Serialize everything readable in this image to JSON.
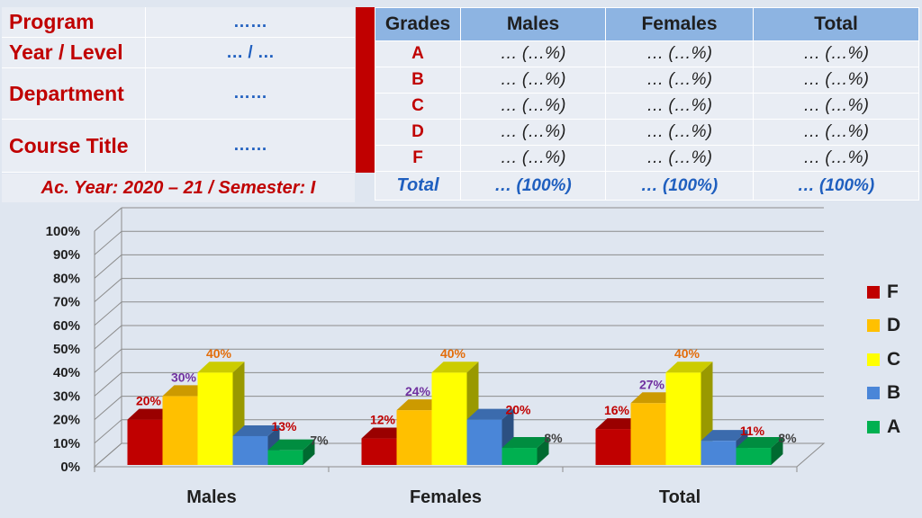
{
  "info": {
    "rows": [
      {
        "label": "Program",
        "value": "……"
      },
      {
        "label": "Year / Level",
        "value": "… / …"
      },
      {
        "label": "Department",
        "value": "……"
      },
      {
        "label": "Course Title",
        "value": "……"
      }
    ],
    "ac_year": "Ac. Year: 2020 – 21 / Semester: I"
  },
  "grades_table": {
    "headers": [
      "Grades",
      "Males",
      "Females",
      "Total"
    ],
    "rows": [
      [
        "A",
        "… (…%)",
        "… (…%)",
        "… (…%)"
      ],
      [
        "B",
        "… (…%)",
        "… (…%)",
        "… (…%)"
      ],
      [
        "C",
        "… (…%)",
        "… (…%)",
        "… (…%)"
      ],
      [
        "D",
        "… (…%)",
        "… (…%)",
        "… (…%)"
      ],
      [
        "F",
        "… (…%)",
        "… (…%)",
        "… (…%)"
      ]
    ],
    "total_row": [
      "Total",
      "… (100%)",
      "… (100%)",
      "… (100%)"
    ]
  },
  "chart_data": {
    "type": "bar",
    "title": "",
    "xlabel": "",
    "ylabel": "",
    "categories": [
      "Males",
      "Females",
      "Total"
    ],
    "ylim": [
      0,
      100
    ],
    "yticks": [
      "0%",
      "10%",
      "20%",
      "30%",
      "40%",
      "50%",
      "60%",
      "70%",
      "80%",
      "90%",
      "100%"
    ],
    "grid": true,
    "legend_position": "right",
    "series": [
      {
        "name": "F",
        "color": "#c00000",
        "label_color": "#c00000",
        "values": [
          20,
          12,
          16
        ],
        "labels": [
          "20%",
          "12%",
          "16%"
        ]
      },
      {
        "name": "D",
        "color": "#ffc000",
        "label_color": "#7030a0",
        "values": [
          30,
          24,
          27
        ],
        "labels": [
          "30%",
          "24%",
          "27%"
        ]
      },
      {
        "name": "C",
        "color": "#ffff00",
        "label_color": "#e36c09",
        "values": [
          40,
          40,
          40
        ],
        "labels": [
          "40%",
          "40%",
          "40%"
        ]
      },
      {
        "name": "B",
        "color": "#4a86d8",
        "label_color": "#c00000",
        "values": [
          13,
          20,
          11
        ],
        "labels": [
          "13%",
          "20%",
          "11%"
        ]
      },
      {
        "name": "A",
        "color": "#00b050",
        "label_color": "#404040",
        "values": [
          7,
          8,
          8
        ],
        "labels": [
          "7%",
          "8%",
          "8%"
        ]
      }
    ],
    "legend_order": [
      "F",
      "D",
      "C",
      "B",
      "A"
    ]
  }
}
